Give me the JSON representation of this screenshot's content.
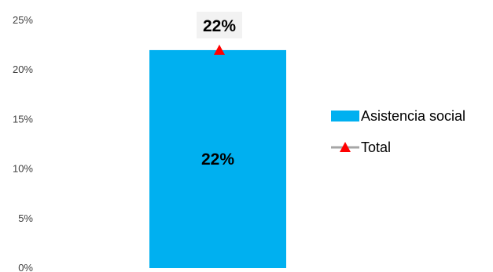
{
  "chart_data": {
    "type": "bar",
    "categories": [
      ""
    ],
    "series": [
      {
        "name": "Asistencia social",
        "values": [
          0.22
        ],
        "color": "#00B0F0",
        "data_labels": [
          "22%"
        ]
      },
      {
        "name": "Total",
        "type": "line",
        "marker": "triangle",
        "values": [
          0.22
        ],
        "color": "#FF0000",
        "line_color": "#A6A6A6",
        "data_labels": [
          "22%"
        ]
      }
    ],
    "ylim": [
      0,
      0.25
    ],
    "ytick_labels": [
      "0%",
      "5%",
      "10%",
      "15%",
      "20%",
      "25%"
    ],
    "grid": false,
    "legend": "right"
  }
}
